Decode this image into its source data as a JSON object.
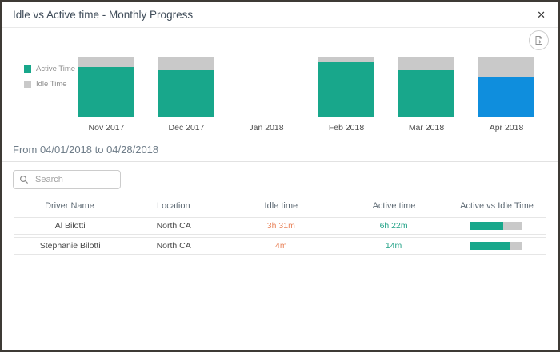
{
  "dialog": {
    "title": "Idle vs Active time - Monthly Progress",
    "close_glyph": "✕"
  },
  "colors": {
    "active": "#18a78b",
    "idle": "#c9c9c9",
    "highlight": "#0f8edd",
    "idle_text": "#e9855d",
    "active_text": "#23a388"
  },
  "chart_data": {
    "type": "bar",
    "stacked": true,
    "unit": "percent",
    "ylim": [
      0,
      100
    ],
    "categories": [
      "Nov 2017",
      "Dec 2017",
      "Jan 2018",
      "Feb 2018",
      "Mar 2018",
      "Apr 2018"
    ],
    "series": [
      {
        "name": "Active Time",
        "values": [
          84,
          79,
          0,
          92,
          79,
          68
        ]
      },
      {
        "name": "Idle Time",
        "values": [
          16,
          21,
          0,
          8,
          21,
          32
        ]
      }
    ],
    "highlighted_category": "Apr 2018",
    "legend_position": "left",
    "legend": [
      {
        "label": "Active Time",
        "color": "#18a78b"
      },
      {
        "label": "Idle Time",
        "color": "#c9c9c9"
      }
    ]
  },
  "date_range": {
    "label": "From 04/01/2018 to 04/28/2018"
  },
  "search": {
    "placeholder": "Search"
  },
  "table": {
    "columns": [
      "Driver Name",
      "Location",
      "Idle time",
      "Active time",
      "Active vs Idle Time"
    ],
    "rows": [
      {
        "driver": "Al Bilotti",
        "location": "North CA",
        "idle": "3h 31m",
        "active": "6h 22m",
        "active_pct": 64
      },
      {
        "driver": "Stephanie Bilotti",
        "location": "North CA",
        "idle": "4m",
        "active": "14m",
        "active_pct": 78
      }
    ]
  }
}
